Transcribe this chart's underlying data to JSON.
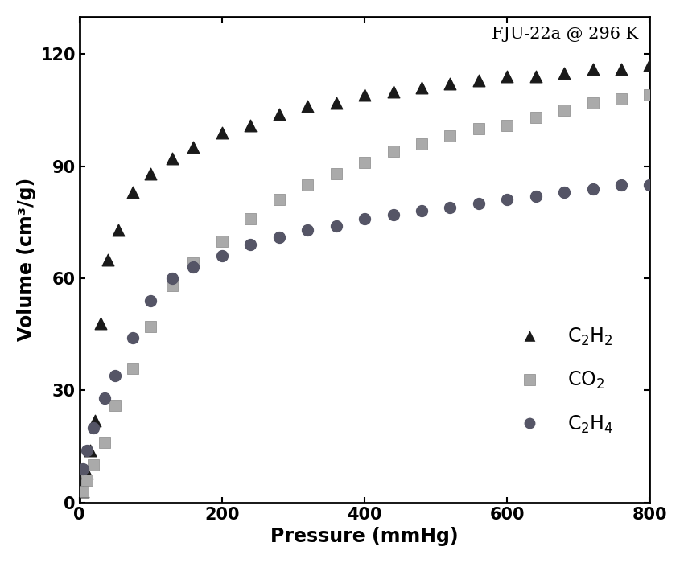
{
  "title": "FJU-22a @ 296 K",
  "xlabel": "Pressure (mmHg)",
  "ylabel": "Volume (cm³/g)",
  "xlim": [
    0,
    800
  ],
  "ylim": [
    0,
    130
  ],
  "xticks": [
    0,
    200,
    400,
    600,
    800
  ],
  "yticks": [
    0,
    30,
    60,
    90,
    120
  ],
  "background_color": "#ffffff",
  "C2H2_x": [
    5,
    10,
    15,
    22,
    30,
    40,
    55,
    75,
    100,
    130,
    160,
    200,
    240,
    280,
    320,
    360,
    400,
    440,
    480,
    520,
    560,
    600,
    640,
    680,
    720,
    760,
    800
  ],
  "C2H2_y": [
    3,
    8,
    14,
    22,
    48,
    65,
    73,
    83,
    88,
    92,
    95,
    99,
    101,
    104,
    106,
    107,
    109,
    110,
    111,
    112,
    113,
    114,
    114,
    115,
    116,
    116,
    117
  ],
  "CO2_x": [
    5,
    10,
    20,
    35,
    50,
    75,
    100,
    130,
    160,
    200,
    240,
    280,
    320,
    360,
    400,
    440,
    480,
    520,
    560,
    600,
    640,
    680,
    720,
    760,
    800
  ],
  "CO2_y": [
    3,
    6,
    10,
    16,
    26,
    36,
    47,
    58,
    64,
    70,
    76,
    81,
    85,
    88,
    91,
    94,
    96,
    98,
    100,
    101,
    103,
    105,
    107,
    108,
    109
  ],
  "C2H4_x": [
    5,
    10,
    20,
    35,
    50,
    75,
    100,
    130,
    160,
    200,
    240,
    280,
    320,
    360,
    400,
    440,
    480,
    520,
    560,
    600,
    640,
    680,
    720,
    760,
    800
  ],
  "C2H4_y": [
    9,
    14,
    20,
    28,
    34,
    44,
    54,
    60,
    63,
    66,
    69,
    71,
    73,
    74,
    76,
    77,
    78,
    79,
    80,
    81,
    82,
    83,
    84,
    85,
    85
  ],
  "C2H2_color": "#1a1a1a",
  "CO2_color": "#aaaaaa",
  "C2H4_color": "#555566",
  "marker_size_tri": 110,
  "marker_size_sq": 90,
  "marker_size_circ": 100,
  "title_fontsize": 15,
  "label_fontsize": 17,
  "tick_fontsize": 15,
  "legend_fontsize": 17
}
